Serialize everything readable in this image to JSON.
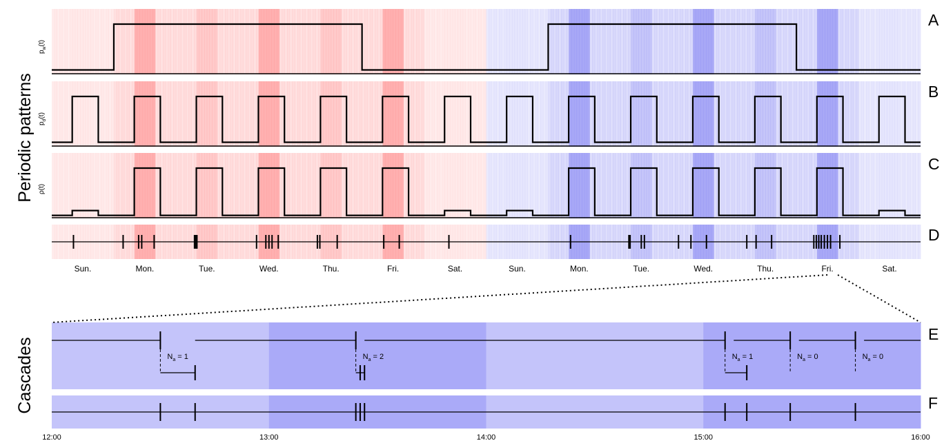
{
  "figure": {
    "group_labels": {
      "periodic": "Periodic patterns",
      "cascades": "Cascades"
    },
    "panel_labels": [
      "A",
      "B",
      "C",
      "D",
      "E",
      "F"
    ],
    "ylabels": {
      "A": {
        "main": "p",
        "sub": "w",
        "tail": "(t)"
      },
      "B": {
        "main": "p",
        "sub": "d",
        "tail": "(t)"
      },
      "C": {
        "main": "ρ",
        "tail": "(t)"
      }
    },
    "colors": {
      "week1": "#ff9a9a",
      "week2": "#8f8ff4",
      "work": "#aaaaf8",
      "offwork": "#c4c4fa",
      "line": "#000000"
    }
  },
  "chart_data": [
    {
      "panel": "A",
      "type": "line",
      "step": true,
      "ylabel": "p_w(t)",
      "x": [
        0,
        1,
        5,
        7,
        8,
        12,
        14
      ],
      "y": [
        0.05,
        1,
        0.05,
        0.05,
        1,
        0.05,
        0.05
      ]
    },
    {
      "panel": "B",
      "type": "line",
      "step": true,
      "ylabel": "p_d(t)",
      "day_pattern": {
        "on_start": 0.33,
        "on_end": 0.75,
        "high": 1,
        "low": 0.05
      },
      "days": 14
    },
    {
      "panel": "C",
      "type": "line",
      "step": true,
      "ylabel": "ρ(t)",
      "day_high": [
        0.12,
        1,
        1,
        1,
        1,
        1,
        0.12,
        0.12,
        1,
        1,
        1,
        1,
        1,
        0.12
      ],
      "low": 0.02
    },
    {
      "panel": "D",
      "type": "scatter",
      "event_days": [
        0.35,
        1.15,
        1.4,
        1.45,
        1.65,
        2.3,
        2.32,
        2.34,
        3.3,
        3.45,
        3.5,
        3.55,
        3.65,
        4.28,
        4.32,
        4.6,
        5.35,
        5.6,
        6.4,
        8.36,
        9.3,
        9.32,
        9.5,
        9.55,
        10.1,
        10.3,
        10.55,
        11.2,
        11.35,
        11.6,
        12.28,
        12.32,
        12.36,
        12.4,
        12.45,
        12.5,
        12.55,
        12.7
      ],
      "day_labels": [
        "Sun.",
        "Mon.",
        "Tue.",
        "Wed.",
        "Thu.",
        "Fri.",
        "Sat.",
        "Sun.",
        "Mon.",
        "Tue.",
        "Wed.",
        "Thu.",
        "Fri.",
        "Sat."
      ],
      "work_hours": [
        8,
        16
      ]
    },
    {
      "panel": "E",
      "type": "line",
      "x_range": [
        "12:00",
        "16:00"
      ],
      "ticks": [
        "12:00",
        "13:00",
        "14:00",
        "15:00",
        "16:00"
      ],
      "hour_blocks": [
        "off",
        "work",
        "off",
        "work"
      ],
      "cascades": [
        {
          "root": 0.5,
          "na_label": "N",
          "na_sub": "a",
          "na_value": " = 1",
          "children": [
            0.66
          ]
        },
        {
          "root": 1.4,
          "na_label": "N",
          "na_sub": "a",
          "na_value": " = 2",
          "children": [
            1.42,
            1.44
          ]
        },
        {
          "root": 3.1,
          "na_label": "N",
          "na_sub": "a",
          "na_value": " = 1",
          "children": [
            3.2
          ]
        },
        {
          "root": 3.4,
          "na_label": "N",
          "na_sub": "a",
          "na_value": " = 0",
          "children": []
        },
        {
          "root": 3.7,
          "na_label": "N",
          "na_sub": "a",
          "na_value": " = 0",
          "children": []
        }
      ]
    },
    {
      "panel": "F",
      "type": "scatter",
      "events": [
        0.5,
        0.66,
        1.4,
        1.42,
        1.44,
        3.1,
        3.2,
        3.4,
        3.7
      ]
    }
  ]
}
